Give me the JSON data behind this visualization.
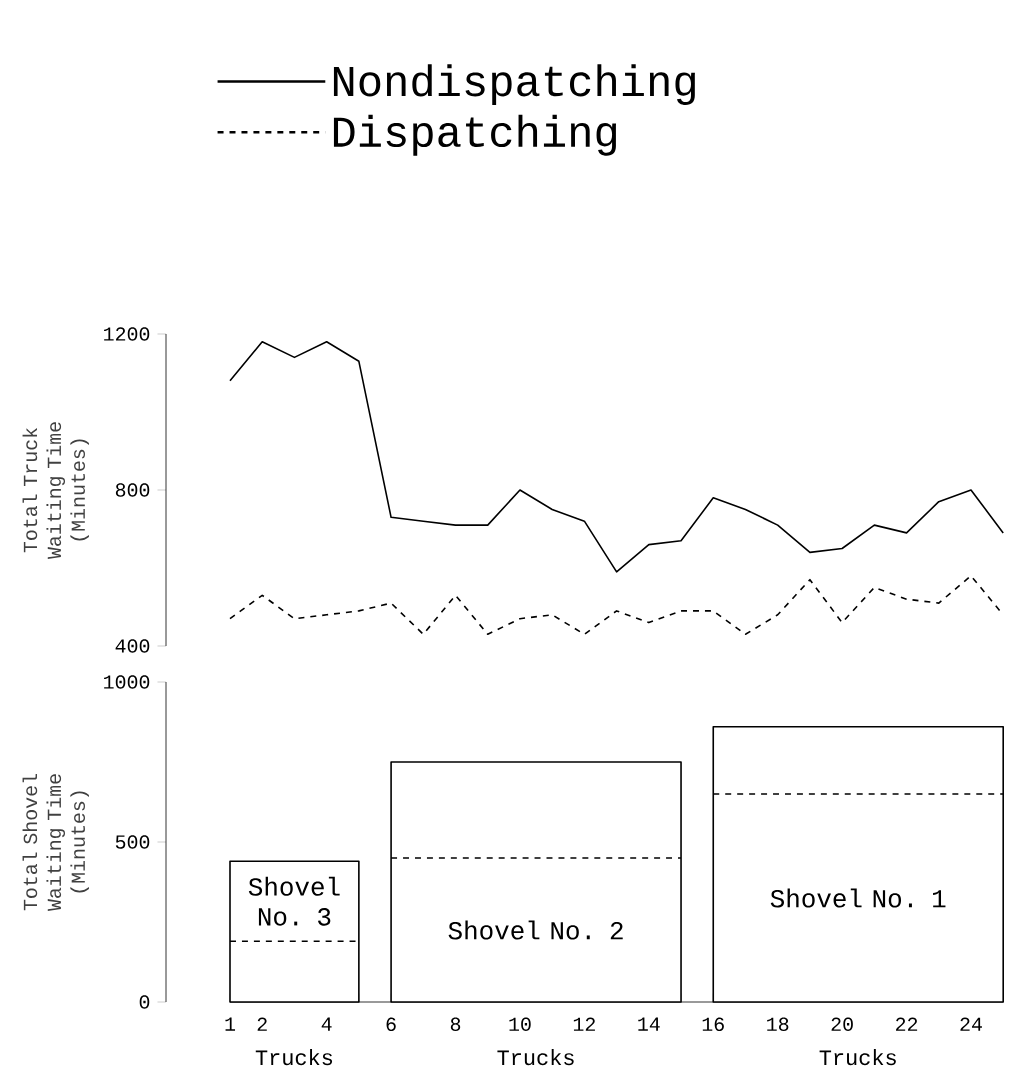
{
  "chart_data": [
    {
      "type": "line",
      "x": [
        1,
        2,
        3,
        4,
        5,
        6,
        7,
        8,
        9,
        10,
        11,
        12,
        13,
        14,
        15,
        16,
        17,
        18,
        19,
        20,
        21,
        22,
        23,
        24,
        25
      ],
      "ylabel": "Total Truck Waiting Time (Minutes)",
      "ylim": [
        400,
        1200
      ],
      "yticks": [
        400,
        800,
        1200
      ],
      "tick_labels": "y",
      "legend": "top",
      "series": [
        {
          "name": "Nondispatching",
          "color": "#000000",
          "line_style": "solid",
          "values": [
            1080,
            1180,
            1140,
            1180,
            1130,
            730,
            720,
            710,
            710,
            800,
            750,
            720,
            590,
            660,
            670,
            780,
            750,
            710,
            640,
            650,
            710,
            690,
            770,
            800,
            690
          ]
        },
        {
          "name": "Dispatching",
          "color": "#000000",
          "line_style": "dashed",
          "values": [
            470,
            530,
            470,
            480,
            490,
            510,
            430,
            530,
            430,
            470,
            480,
            430,
            490,
            460,
            490,
            490,
            430,
            480,
            570,
            460,
            550,
            520,
            510,
            580,
            480
          ]
        }
      ]
    },
    {
      "type": "area",
      "xlabel": "Trucks",
      "ylabel": "Total Shovel Waiting Time (Minutes)",
      "xlim": [
        1,
        25
      ],
      "ylim": [
        0,
        1000
      ],
      "yticks": [
        0,
        500,
        1000
      ],
      "xticks": [
        1,
        2,
        {
          "value": 3,
          "label": null
        },
        4,
        {
          "value": 5,
          "label": null
        },
        6,
        {
          "value": 7,
          "label": null
        },
        8,
        {
          "value": 9,
          "label": null
        },
        10,
        {
          "value": 11,
          "label": null
        },
        12,
        {
          "value": 13,
          "label": null
        },
        14,
        {
          "value": 15,
          "label": null
        },
        16,
        {
          "value": 17,
          "label": null
        },
        18,
        {
          "value": 19,
          "label": null
        },
        20,
        {
          "value": 21,
          "label": null
        },
        22,
        {
          "value": 23,
          "label": null
        },
        24,
        {
          "value": 25,
          "label": null
        }
      ],
      "series": [
        {
          "name": "Shovel No. 3",
          "type": "area",
          "color": "#000000",
          "x": [
            1,
            5
          ],
          "values": [
            440,
            440
          ]
        },
        {
          "type": "line",
          "line_style": "dashed",
          "color": "#000000",
          "x": [
            1,
            5
          ],
          "values": [
            190,
            190
          ]
        },
        {
          "name": "Shovel No. 2",
          "type": "area",
          "color": "#000000",
          "x": [
            6,
            15
          ],
          "values": [
            750,
            750
          ]
        },
        {
          "type": "line",
          "line_style": "dashed",
          "color": "#000000",
          "x": [
            6,
            15
          ],
          "values": [
            450,
            450
          ]
        },
        {
          "name": "Shovel No. 1",
          "type": "area",
          "color": "#000000",
          "x": [
            16,
            25
          ],
          "values": [
            860,
            860
          ]
        },
        {
          "type": "line",
          "line_style": "dashed",
          "color": "#000000",
          "x": [
            16,
            25
          ],
          "values": [
            650,
            650
          ]
        }
      ]
    }
  ]
}
